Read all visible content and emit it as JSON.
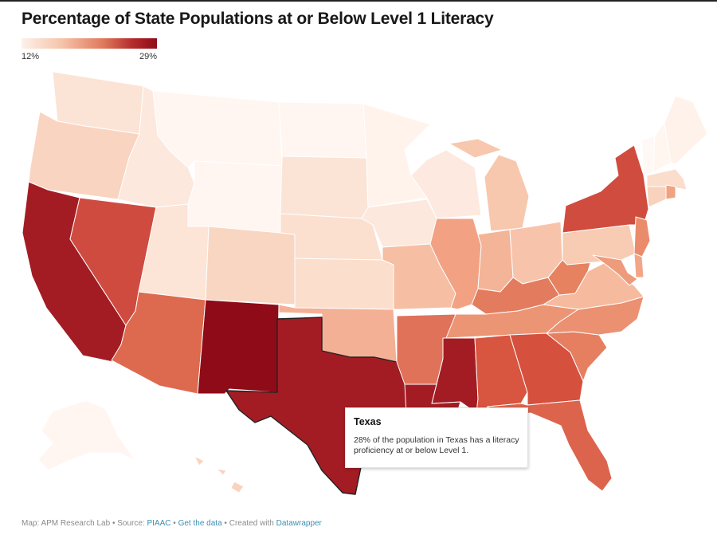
{
  "title": "Percentage of State Populations at or Below Level 1 Literacy",
  "legend": {
    "min_label": "12%",
    "max_label": "29%",
    "min_color": "#fdf1ea",
    "max_color": "#8f0b17"
  },
  "tooltip": {
    "state": "Texas",
    "text": "28% of the population in Texas has a literacy proficiency at or below Level 1."
  },
  "footer": {
    "map_credit": "Map: APM Research Lab",
    "source_label": "Source:",
    "source_link": "PIAAC",
    "get_data_link": "Get the data",
    "created_label": "Created with",
    "tool_link": "Datawrapper",
    "separator": "•"
  },
  "states": [
    {
      "name": "Washington",
      "color": "#fbe4d6"
    },
    {
      "name": "Oregon",
      "color": "#f9d4c0"
    },
    {
      "name": "California",
      "color": "#a31c24"
    },
    {
      "name": "Idaho",
      "color": "#fce8dc"
    },
    {
      "name": "Nevada",
      "color": "#cf4b40"
    },
    {
      "name": "Montana",
      "color": "#fff6f1"
    },
    {
      "name": "Wyoming",
      "color": "#fff6f1"
    },
    {
      "name": "Utah",
      "color": "#fce4d6"
    },
    {
      "name": "Arizona",
      "color": "#dd6a4e"
    },
    {
      "name": "Colorado",
      "color": "#f9d6c2"
    },
    {
      "name": "New Mexico",
      "color": "#8f0b17"
    },
    {
      "name": "North Dakota",
      "color": "#fff6f1"
    },
    {
      "name": "South Dakota",
      "color": "#fbe4d6"
    },
    {
      "name": "Nebraska",
      "color": "#fbdfcf"
    },
    {
      "name": "Kansas",
      "color": "#fbdecc"
    },
    {
      "name": "Oklahoma",
      "color": "#f4b094"
    },
    {
      "name": "Texas",
      "color": "#a31c24"
    },
    {
      "name": "Minnesota",
      "color": "#fff3ec"
    },
    {
      "name": "Iowa",
      "color": "#fce8dd"
    },
    {
      "name": "Missouri",
      "color": "#f6bea3"
    },
    {
      "name": "Arkansas",
      "color": "#df7259"
    },
    {
      "name": "Louisiana",
      "color": "#a31c24"
    },
    {
      "name": "Wisconsin",
      "color": "#fde9df"
    },
    {
      "name": "Illinois",
      "color": "#f2a283"
    },
    {
      "name": "Michigan",
      "color": "#f7c7ae"
    },
    {
      "name": "Indiana",
      "color": "#f4b497"
    },
    {
      "name": "Ohio",
      "color": "#f7c4ab"
    },
    {
      "name": "Kentucky",
      "color": "#e37c5e"
    },
    {
      "name": "Tennessee",
      "color": "#ec9574"
    },
    {
      "name": "Mississippi",
      "color": "#a31c24"
    },
    {
      "name": "Alabama",
      "color": "#d8553f"
    },
    {
      "name": "Georgia",
      "color": "#d6503e"
    },
    {
      "name": "Florida",
      "color": "#dc644c"
    },
    {
      "name": "South Carolina",
      "color": "#e57f60"
    },
    {
      "name": "North Carolina",
      "color": "#eb9071"
    },
    {
      "name": "Virginia",
      "color": "#f6bb9f"
    },
    {
      "name": "West Virginia",
      "color": "#e6825f"
    },
    {
      "name": "Pennsylvania",
      "color": "#f8cbb3"
    },
    {
      "name": "New York",
      "color": "#d04c3f"
    },
    {
      "name": "New Jersey",
      "color": "#ea8c6c"
    },
    {
      "name": "Maryland",
      "color": "#ee9b7b"
    },
    {
      "name": "Delaware",
      "color": "#f2a687"
    },
    {
      "name": "Vermont",
      "color": "#fff8f4"
    },
    {
      "name": "New Hampshire",
      "color": "#fff6f0"
    },
    {
      "name": "Maine",
      "color": "#fff2ea"
    },
    {
      "name": "Massachusetts",
      "color": "#fbddcc"
    },
    {
      "name": "Connecticut",
      "color": "#f8d2bd"
    },
    {
      "name": "Rhode Island",
      "color": "#f1a282"
    },
    {
      "name": "Alaska",
      "color": "#fff6f2"
    },
    {
      "name": "Hawaii",
      "color": "#f9d3bd"
    }
  ]
}
